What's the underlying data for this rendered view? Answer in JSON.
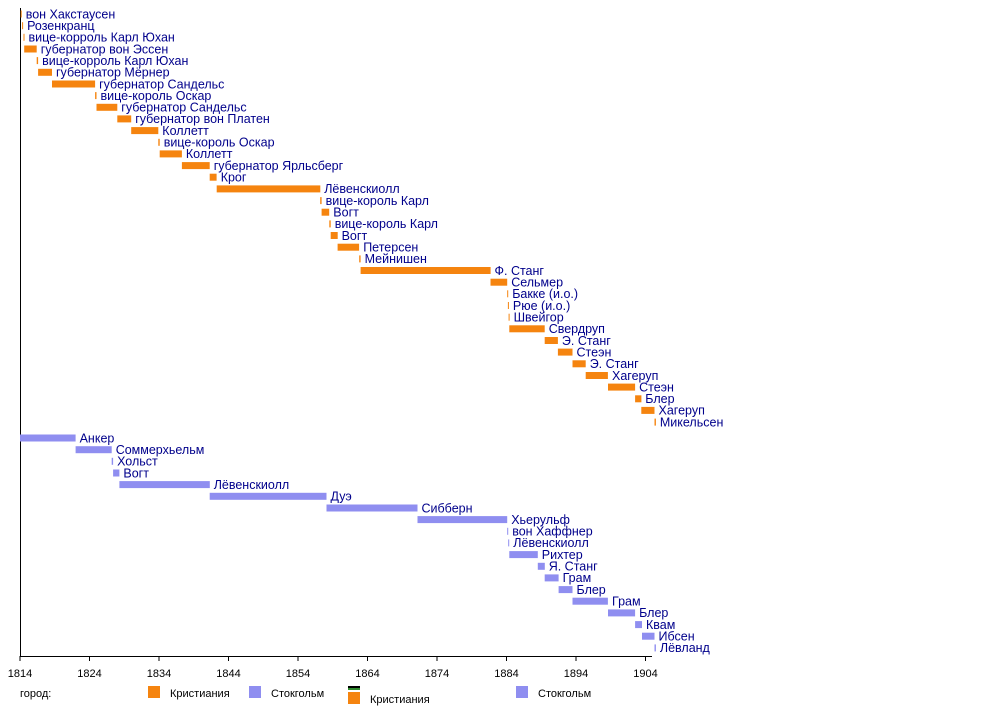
{
  "chart_data": {
    "type": "bar",
    "orientation": "horizontal-timeline",
    "x": {
      "min": 1814,
      "max": 1905,
      "ticks": [
        1814,
        1824,
        1834,
        1844,
        1854,
        1864,
        1874,
        1884,
        1894,
        1904
      ]
    },
    "colors": {
      "kristiania": "#f5840f",
      "stockholm": "#8f8ef0",
      "accent_black": "#000000",
      "accent_green": "#2e8b2e"
    },
    "series": [
      {
        "name": "Кристиания",
        "color": "#f5840f",
        "bars": [
          {
            "label": "вон Хакстаусен",
            "start": 1814.1,
            "end": 1814.25
          },
          {
            "label": "Розенкранц",
            "start": 1814.3,
            "end": 1814.4
          },
          {
            "label": "вице-корроль Карл Юхан",
            "start": 1814.5,
            "end": 1814.6
          },
          {
            "label": "губернатор вон Эссен",
            "start": 1814.6,
            "end": 1816.4
          },
          {
            "label": "вице-корроль Карл Юхан",
            "start": 1816.4,
            "end": 1816.6
          },
          {
            "label": "губернатор Мёрнер",
            "start": 1816.6,
            "end": 1818.6
          },
          {
            "label": "губернатор Сандельс",
            "start": 1818.6,
            "end": 1824.8
          },
          {
            "label": "вице-король Оскар",
            "start": 1824.8,
            "end": 1825.0
          },
          {
            "label": "губернатор Сандельс",
            "start": 1825.0,
            "end": 1828.0
          },
          {
            "label": "губернатор вон Платен",
            "start": 1828.0,
            "end": 1830.0
          },
          {
            "label": "Коллетт",
            "start": 1830.0,
            "end": 1833.9
          },
          {
            "label": "вице-король Оскар",
            "start": 1833.9,
            "end": 1834.1
          },
          {
            "label": "Коллетт",
            "start": 1834.1,
            "end": 1837.3
          },
          {
            "label": "губернатор Ярльсберг",
            "start": 1837.3,
            "end": 1841.3
          },
          {
            "label": "Крог",
            "start": 1841.3,
            "end": 1842.3
          },
          {
            "label": "Лёвенскиолл",
            "start": 1842.3,
            "end": 1857.2
          },
          {
            "label": "вице-король Карл",
            "start": 1857.2,
            "end": 1857.4
          },
          {
            "label": "Вогт",
            "start": 1857.4,
            "end": 1858.5
          },
          {
            "label": "вице-король Карл",
            "start": 1858.5,
            "end": 1858.7
          },
          {
            "label": "Вогт",
            "start": 1858.7,
            "end": 1859.7
          },
          {
            "label": "Петерсен",
            "start": 1859.7,
            "end": 1862.8
          },
          {
            "label": "Мейнишен",
            "start": 1862.8,
            "end": 1863.0
          },
          {
            "label": "Ф. Станг",
            "start": 1863.0,
            "end": 1881.7
          },
          {
            "label": "Сельмер",
            "start": 1881.7,
            "end": 1884.1
          },
          {
            "label": "Бакке (и.о.)",
            "start": 1884.1,
            "end": 1884.2
          },
          {
            "label": "Рюе (и.о.)",
            "start": 1884.2,
            "end": 1884.3
          },
          {
            "label": "Швейгор",
            "start": 1884.3,
            "end": 1884.4
          },
          {
            "label": "Свердруп",
            "start": 1884.4,
            "end": 1889.5
          },
          {
            "label": "Э. Станг",
            "start": 1889.5,
            "end": 1891.4
          },
          {
            "label": "Стеэн",
            "start": 1891.4,
            "end": 1893.5
          },
          {
            "label": "Э. Станг",
            "start": 1893.5,
            "end": 1895.4
          },
          {
            "label": "Хагеруп",
            "start": 1895.4,
            "end": 1898.6
          },
          {
            "label": "Стеэн",
            "start": 1898.6,
            "end": 1902.5
          },
          {
            "label": "Блер",
            "start": 1902.5,
            "end": 1903.4
          },
          {
            "label": "Хагеруп",
            "start": 1903.4,
            "end": 1905.3
          },
          {
            "label": "Микельсен",
            "start": 1905.3,
            "end": 1905.5
          }
        ]
      },
      {
        "name": "Стокгольм",
        "color": "#8f8ef0",
        "bars": [
          {
            "label": "Анкер",
            "start": 1814.0,
            "end": 1822.0
          },
          {
            "label": "Соммерхьельм",
            "start": 1822.0,
            "end": 1827.2
          },
          {
            "label": "Хольст",
            "start": 1827.2,
            "end": 1827.4
          },
          {
            "label": "Вогт",
            "start": 1827.4,
            "end": 1828.3
          },
          {
            "label": "Лёвенскиолл",
            "start": 1828.3,
            "end": 1841.3
          },
          {
            "label": "Дуэ",
            "start": 1841.3,
            "end": 1858.1
          },
          {
            "label": "Сибберн",
            "start": 1858.1,
            "end": 1871.2
          },
          {
            "label": "Хьерульф",
            "start": 1871.2,
            "end": 1884.1
          },
          {
            "label": "вон Хаффнер",
            "start": 1884.1,
            "end": 1884.25
          },
          {
            "label": "Лёвенскиолл",
            "start": 1884.25,
            "end": 1884.4
          },
          {
            "label": "Рихтер",
            "start": 1884.4,
            "end": 1888.5
          },
          {
            "label": "Я. Станг",
            "start": 1888.5,
            "end": 1889.5
          },
          {
            "label": "Грам",
            "start": 1889.5,
            "end": 1891.5
          },
          {
            "label": "Блер",
            "start": 1891.5,
            "end": 1893.5
          },
          {
            "label": "Грам",
            "start": 1893.5,
            "end": 1898.6
          },
          {
            "label": "Блер",
            "start": 1898.6,
            "end": 1902.5
          },
          {
            "label": "Квам",
            "start": 1902.5,
            "end": 1903.5
          },
          {
            "label": "Ибсен",
            "start": 1903.5,
            "end": 1905.3
          },
          {
            "label": "Лёвланд",
            "start": 1905.3,
            "end": 1905.5
          }
        ]
      }
    ],
    "legend": {
      "title": "город:",
      "items": [
        {
          "label": "Кристиания",
          "color": "#f5840f",
          "variant": "plain"
        },
        {
          "label": "Стокгольм",
          "color": "#8f8ef0",
          "variant": "plain"
        },
        {
          "label": "Кристиания",
          "color": "#f5840f",
          "variant": "striped"
        },
        {
          "label": "Стокгольм",
          "color": "#8f8ef0",
          "variant": "plain"
        }
      ]
    }
  }
}
